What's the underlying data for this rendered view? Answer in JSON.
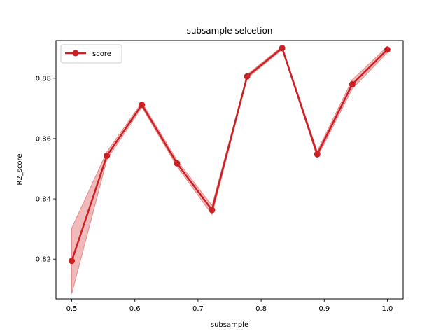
{
  "chart_data": {
    "type": "line",
    "title": "subsample selcetion",
    "xlabel": "subsample",
    "ylabel": "R2_score",
    "xlim": [
      0.475,
      1.025
    ],
    "ylim": [
      0.8068,
      0.8925
    ],
    "xticks": [
      0.5,
      0.6,
      0.7,
      0.8,
      0.9,
      1.0
    ],
    "xtick_labels": [
      "0.5",
      "0.6",
      "0.7",
      "0.8",
      "0.9",
      "1.0"
    ],
    "yticks": [
      0.82,
      0.84,
      0.86,
      0.88
    ],
    "ytick_labels": [
      "0.82",
      "0.84",
      "0.86",
      "0.88"
    ],
    "grid": false,
    "legend": {
      "position": "top-left",
      "entries": [
        "score"
      ]
    },
    "series": [
      {
        "name": "score",
        "color": "#cc1f22",
        "band_color": "#e68a8c",
        "marker": "circle",
        "x": [
          0.5,
          0.5556,
          0.6111,
          0.6667,
          0.7222,
          0.7778,
          0.8333,
          0.8889,
          0.9444,
          1.0
        ],
        "y": [
          0.8194,
          0.8543,
          0.8712,
          0.8518,
          0.8363,
          0.8806,
          0.89,
          0.8548,
          0.878,
          0.8895
        ],
        "lower": [
          0.8085,
          0.853,
          0.8704,
          0.8508,
          0.8348,
          0.88,
          0.8895,
          0.8538,
          0.8765,
          0.8885
        ],
        "upper": [
          0.8303,
          0.8556,
          0.872,
          0.8528,
          0.8378,
          0.8812,
          0.8905,
          0.8558,
          0.8795,
          0.8905
        ]
      }
    ]
  }
}
